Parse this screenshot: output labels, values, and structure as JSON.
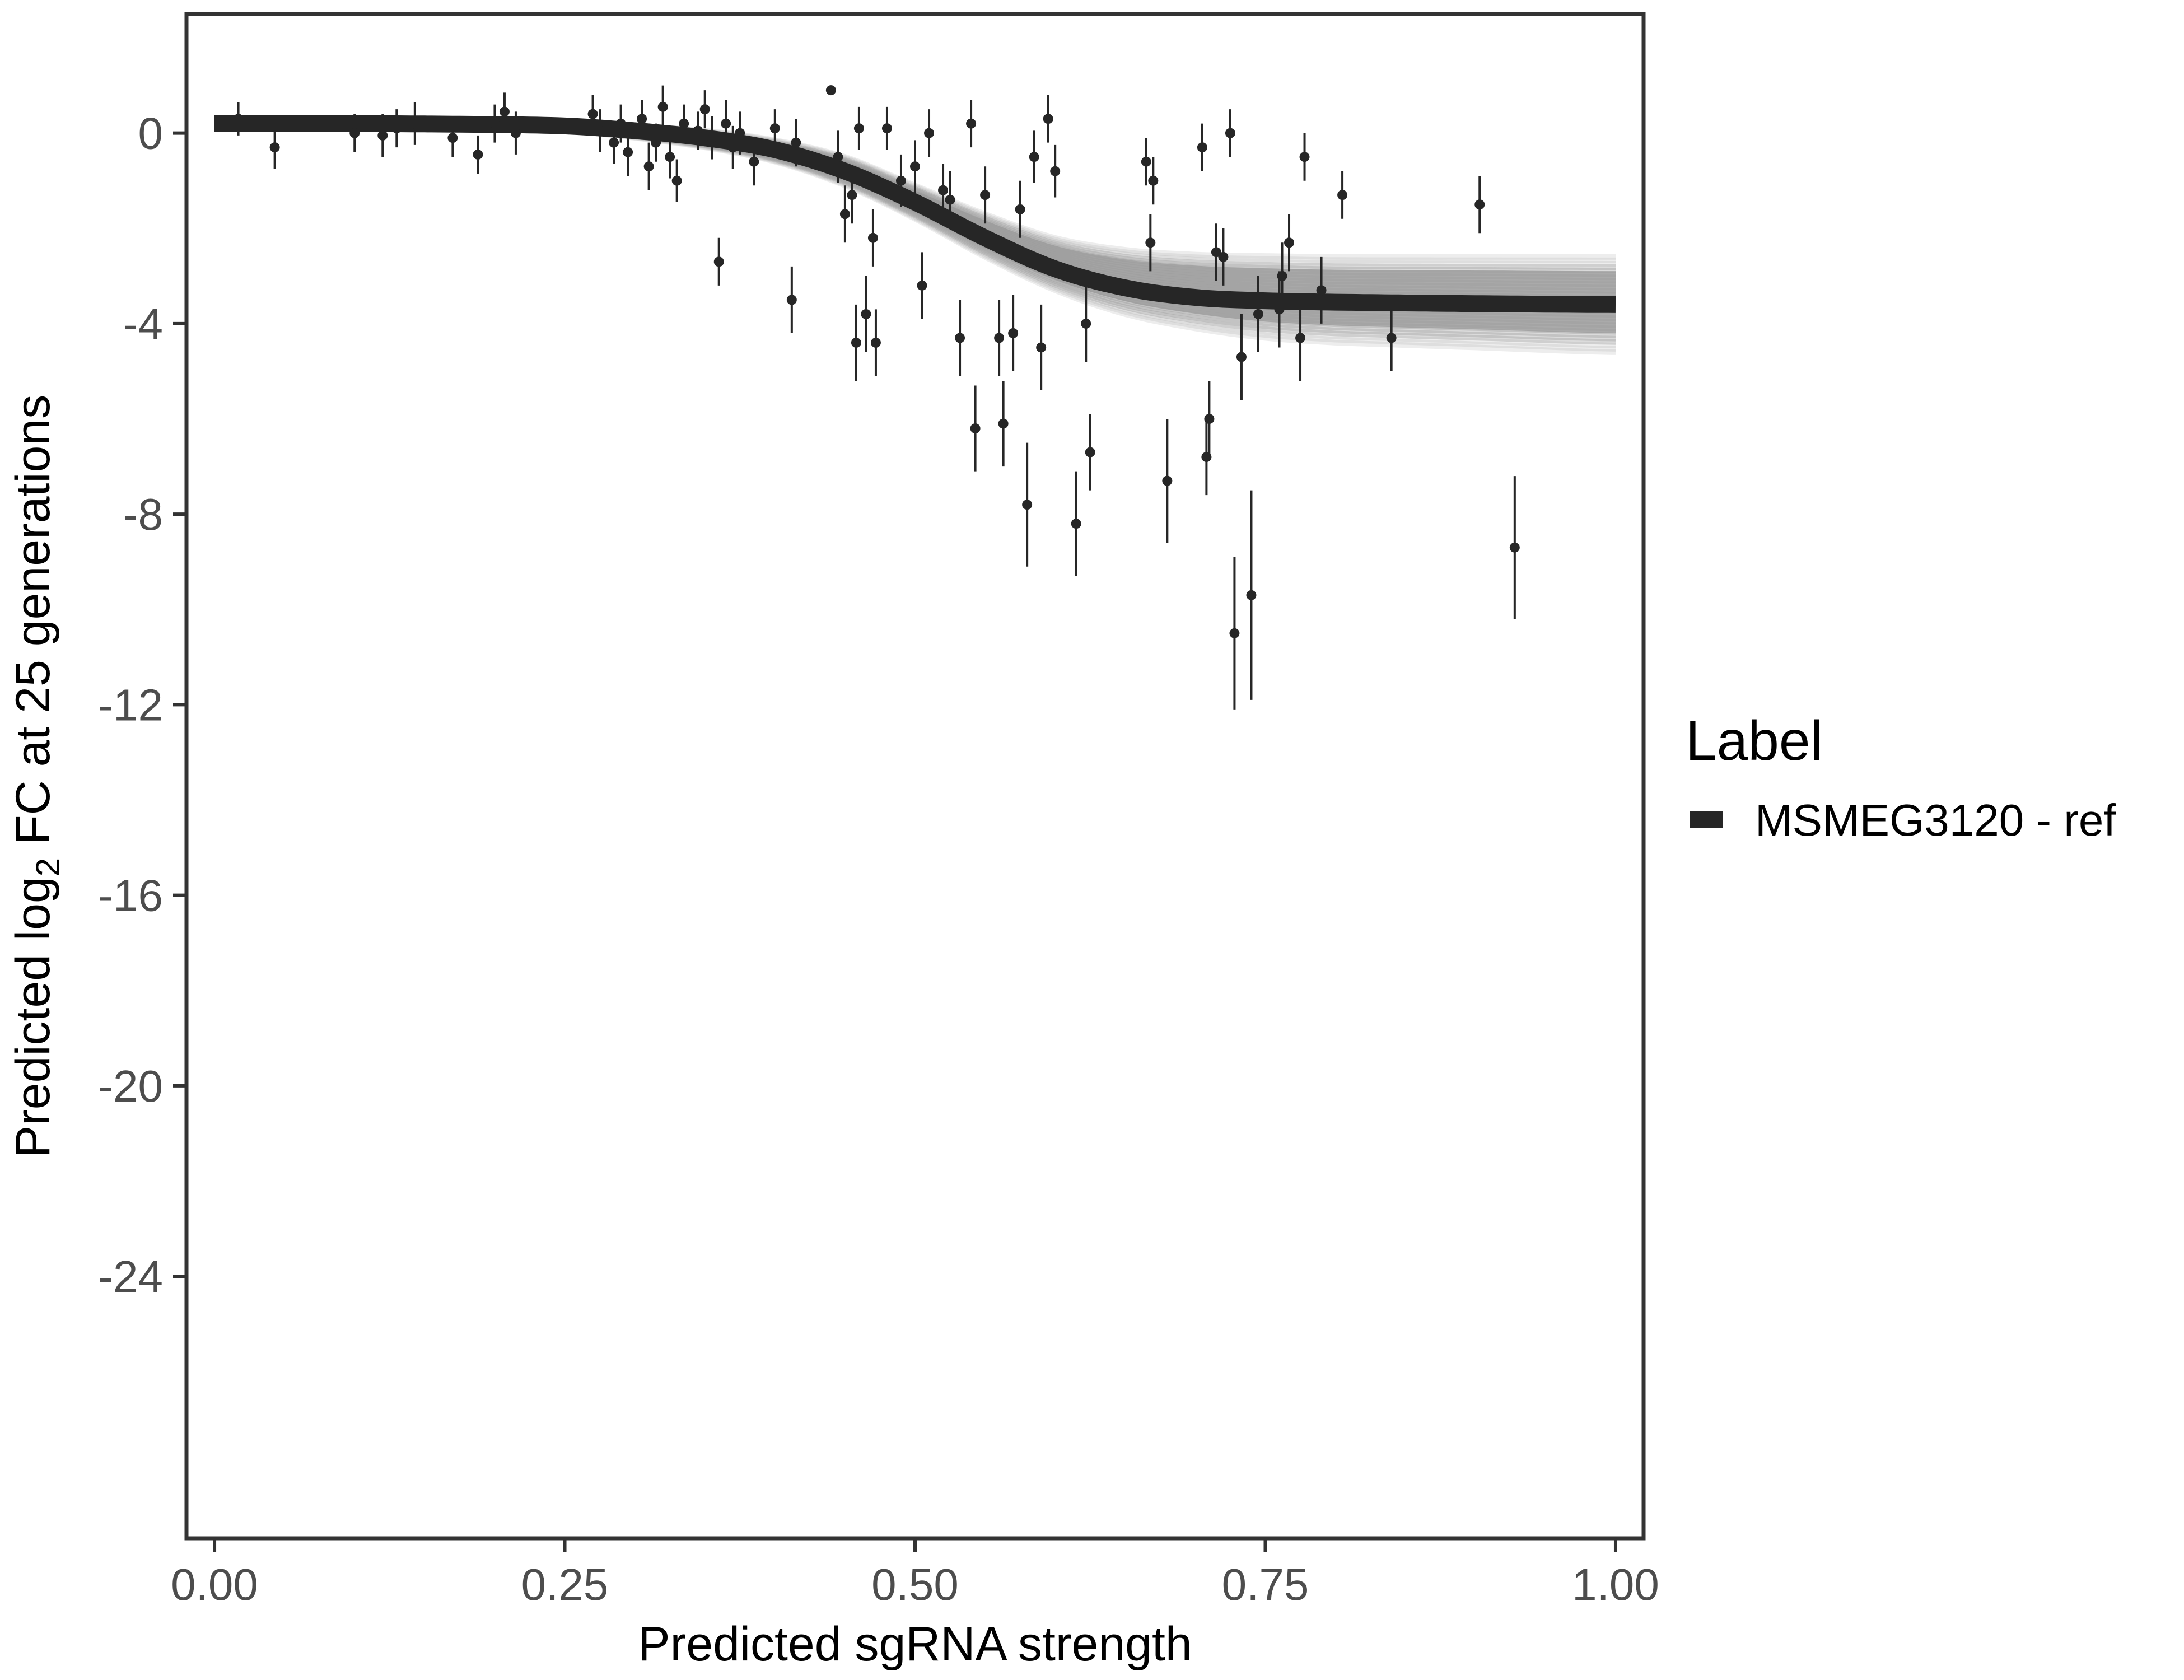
{
  "chart_data": {
    "type": "scatter",
    "xlabel": "Predicted sgRNA strength",
    "ylabel": {
      "prefix": "Predicted  log",
      "subscript": "2",
      "suffix": " FC at 25 generations"
    },
    "xlim": [
      -0.02,
      1.02
    ],
    "ylim": [
      -29.5,
      2.5
    ],
    "x_ticks": [
      0.0,
      0.25,
      0.5,
      0.75,
      1.0
    ],
    "x_tick_labels": [
      "0.00",
      "0.25",
      "0.50",
      "0.75",
      "1.00"
    ],
    "y_ticks": [
      0,
      -4,
      -8,
      -12,
      -16,
      -20,
      -24
    ],
    "y_tick_labels": [
      "0",
      "-4",
      "-8",
      "-12",
      "-16",
      "-20",
      "-24"
    ],
    "grid": false,
    "legend": {
      "title": "Label",
      "position": "right",
      "entries": [
        {
          "label": "MSMEG3120 - ref",
          "color": "#262626"
        }
      ]
    },
    "series": [
      {
        "name": "MSMEG3120 - ref",
        "kind": "fitted_curve",
        "color": "#262626",
        "x": [
          0.0,
          0.1,
          0.2,
          0.25,
          0.3,
          0.35,
          0.4,
          0.45,
          0.5,
          0.55,
          0.6,
          0.65,
          0.7,
          0.75,
          0.8,
          0.9,
          1.0
        ],
        "y": [
          0.2,
          0.2,
          0.18,
          0.15,
          0.05,
          -0.1,
          -0.35,
          -0.8,
          -1.45,
          -2.2,
          -2.85,
          -3.25,
          -3.45,
          -3.52,
          -3.55,
          -3.58,
          -3.6
        ],
        "band": {
          "color": "#999999",
          "upper": [
            0.25,
            0.25,
            0.24,
            0.22,
            0.15,
            0.05,
            -0.15,
            -0.5,
            -1.1,
            -1.7,
            -2.2,
            -2.45,
            -2.55,
            -2.58,
            -2.6,
            -2.6,
            -2.6
          ],
          "lower": [
            0.15,
            0.15,
            0.12,
            0.05,
            -0.1,
            -0.3,
            -0.6,
            -1.1,
            -1.8,
            -2.6,
            -3.3,
            -3.8,
            -4.1,
            -4.3,
            -4.4,
            -4.5,
            -4.6
          ]
        }
      },
      {
        "name": "",
        "kind": "points_with_error",
        "color": "#262626",
        "points": [
          {
            "x": 0.017,
            "y": 0.3,
            "err": 0.35
          },
          {
            "x": 0.043,
            "y": -0.3,
            "err": 0.45
          },
          {
            "x": 0.1,
            "y": 0.0,
            "err": 0.4
          },
          {
            "x": 0.12,
            "y": -0.05,
            "err": 0.45
          },
          {
            "x": 0.13,
            "y": 0.1,
            "err": 0.4
          },
          {
            "x": 0.143,
            "y": 0.2,
            "err": 0.45
          },
          {
            "x": 0.17,
            "y": -0.1,
            "err": 0.4
          },
          {
            "x": 0.188,
            "y": -0.45,
            "err": 0.4
          },
          {
            "x": 0.2,
            "y": 0.2,
            "err": 0.4
          },
          {
            "x": 0.207,
            "y": 0.45,
            "err": 0.4
          },
          {
            "x": 0.215,
            "y": 0.0,
            "err": 0.45
          },
          {
            "x": 0.27,
            "y": 0.4,
            "err": 0.4
          },
          {
            "x": 0.275,
            "y": 0.05,
            "err": 0.45
          },
          {
            "x": 0.285,
            "y": -0.2,
            "err": 0.45
          },
          {
            "x": 0.29,
            "y": 0.2,
            "err": 0.4
          },
          {
            "x": 0.295,
            "y": -0.4,
            "err": 0.5
          },
          {
            "x": 0.305,
            "y": 0.3,
            "err": 0.4
          },
          {
            "x": 0.31,
            "y": -0.7,
            "err": 0.5
          },
          {
            "x": 0.315,
            "y": -0.2,
            "err": 0.4
          },
          {
            "x": 0.32,
            "y": 0.55,
            "err": 0.45
          },
          {
            "x": 0.325,
            "y": -0.5,
            "err": 0.45
          },
          {
            "x": 0.33,
            "y": -1.0,
            "err": 0.45
          },
          {
            "x": 0.335,
            "y": 0.2,
            "err": 0.4
          },
          {
            "x": 0.345,
            "y": 0.05,
            "err": 0.4
          },
          {
            "x": 0.35,
            "y": 0.5,
            "err": 0.4
          },
          {
            "x": 0.355,
            "y": -0.1,
            "err": 0.45
          },
          {
            "x": 0.36,
            "y": -2.7,
            "err": 0.5
          },
          {
            "x": 0.365,
            "y": 0.2,
            "err": 0.5
          },
          {
            "x": 0.37,
            "y": -0.3,
            "err": 0.45
          },
          {
            "x": 0.375,
            "y": 0.0,
            "err": 0.45
          },
          {
            "x": 0.385,
            "y": -0.6,
            "err": 0.5
          },
          {
            "x": 0.4,
            "y": 0.1,
            "err": 0.4
          },
          {
            "x": 0.412,
            "y": -3.5,
            "err": 0.7
          },
          {
            "x": 0.415,
            "y": -0.2,
            "err": 0.5
          },
          {
            "x": 0.44,
            "y": 0.9,
            "err": 0.0
          },
          {
            "x": 0.445,
            "y": -0.5,
            "err": 0.55
          },
          {
            "x": 0.45,
            "y": -1.7,
            "err": 0.6
          },
          {
            "x": 0.455,
            "y": -1.3,
            "err": 0.6
          },
          {
            "x": 0.458,
            "y": -4.4,
            "err": 0.8
          },
          {
            "x": 0.46,
            "y": 0.1,
            "err": 0.45
          },
          {
            "x": 0.465,
            "y": -3.8,
            "err": 0.8
          },
          {
            "x": 0.47,
            "y": -2.2,
            "err": 0.6
          },
          {
            "x": 0.472,
            "y": -4.4,
            "err": 0.7
          },
          {
            "x": 0.48,
            "y": 0.1,
            "err": 0.45
          },
          {
            "x": 0.49,
            "y": -1.0,
            "err": 0.55
          },
          {
            "x": 0.5,
            "y": -0.7,
            "err": 0.55
          },
          {
            "x": 0.505,
            "y": -3.2,
            "err": 0.7
          },
          {
            "x": 0.51,
            "y": 0.0,
            "err": 0.5
          },
          {
            "x": 0.52,
            "y": -1.2,
            "err": 0.55
          },
          {
            "x": 0.525,
            "y": -1.4,
            "err": 0.6
          },
          {
            "x": 0.532,
            "y": -4.3,
            "err": 0.8
          },
          {
            "x": 0.54,
            "y": 0.2,
            "err": 0.5
          },
          {
            "x": 0.543,
            "y": -6.2,
            "err": 0.9
          },
          {
            "x": 0.55,
            "y": -1.3,
            "err": 0.6
          },
          {
            "x": 0.56,
            "y": -4.3,
            "err": 0.8
          },
          {
            "x": 0.563,
            "y": -6.1,
            "err": 0.9
          },
          {
            "x": 0.57,
            "y": -4.2,
            "err": 0.8
          },
          {
            "x": 0.575,
            "y": -1.6,
            "err": 0.6
          },
          {
            "x": 0.58,
            "y": -7.8,
            "err": 1.3
          },
          {
            "x": 0.585,
            "y": -0.5,
            "err": 0.55
          },
          {
            "x": 0.59,
            "y": -4.5,
            "err": 0.9
          },
          {
            "x": 0.595,
            "y": 0.3,
            "err": 0.5
          },
          {
            "x": 0.6,
            "y": -0.8,
            "err": 0.55
          },
          {
            "x": 0.615,
            "y": -8.2,
            "err": 1.1
          },
          {
            "x": 0.622,
            "y": -4.0,
            "err": 0.8
          },
          {
            "x": 0.625,
            "y": -6.7,
            "err": 0.8
          },
          {
            "x": 0.665,
            "y": -0.6,
            "err": 0.5
          },
          {
            "x": 0.668,
            "y": -2.3,
            "err": 0.6
          },
          {
            "x": 0.67,
            "y": -1.0,
            "err": 0.5
          },
          {
            "x": 0.68,
            "y": -7.3,
            "err": 1.3
          },
          {
            "x": 0.705,
            "y": -0.3,
            "err": 0.5
          },
          {
            "x": 0.708,
            "y": -6.8,
            "err": 0.8
          },
          {
            "x": 0.71,
            "y": -6.0,
            "err": 0.8
          },
          {
            "x": 0.715,
            "y": -2.5,
            "err": 0.6
          },
          {
            "x": 0.72,
            "y": -2.6,
            "err": 0.6
          },
          {
            "x": 0.725,
            "y": 0.0,
            "err": 0.5
          },
          {
            "x": 0.728,
            "y": -10.5,
            "err": 1.6
          },
          {
            "x": 0.733,
            "y": -4.7,
            "err": 0.9
          },
          {
            "x": 0.74,
            "y": -9.7,
            "err": 2.2
          },
          {
            "x": 0.745,
            "y": -3.8,
            "err": 0.8
          },
          {
            "x": 0.76,
            "y": -3.7,
            "err": 0.8
          },
          {
            "x": 0.762,
            "y": -3.0,
            "err": 0.7
          },
          {
            "x": 0.767,
            "y": -2.3,
            "err": 0.6
          },
          {
            "x": 0.775,
            "y": -4.3,
            "err": 0.9
          },
          {
            "x": 0.778,
            "y": -0.5,
            "err": 0.5
          },
          {
            "x": 0.79,
            "y": -3.3,
            "err": 0.7
          },
          {
            "x": 0.805,
            "y": -1.3,
            "err": 0.5
          },
          {
            "x": 0.84,
            "y": -4.3,
            "err": 0.7
          },
          {
            "x": 0.903,
            "y": -1.5,
            "err": 0.6
          },
          {
            "x": 0.928,
            "y": -8.7,
            "err": 1.5
          }
        ]
      }
    ]
  }
}
